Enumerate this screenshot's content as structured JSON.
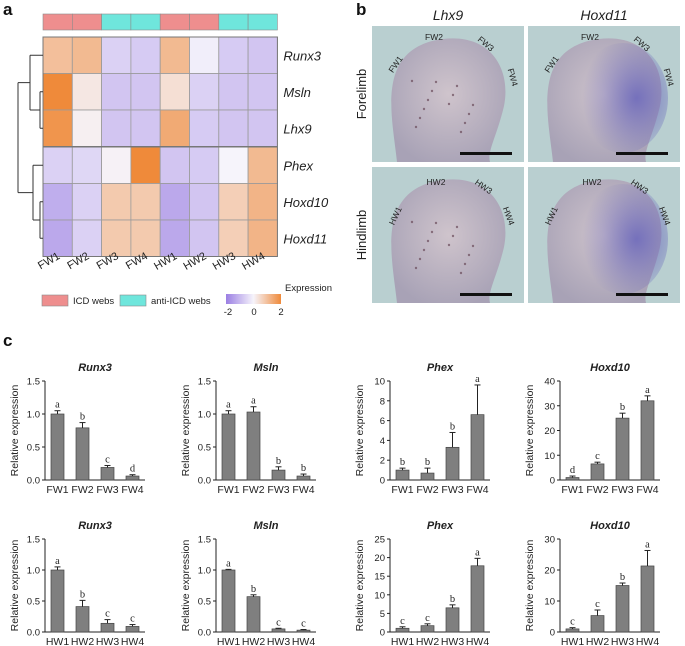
{
  "panels": {
    "a": "a",
    "b": "b",
    "c": "c"
  },
  "colors": {
    "icd": "#ee8e8e",
    "anti_icd": "#6fe6dc",
    "low": "#9b7fe3",
    "mid": "#f6f4fb",
    "high": "#ef8a3a",
    "bar": "#7f7f7f",
    "photo_bg": "#b9cfd0",
    "tissue": "#c9bdc8",
    "stain": "#5f5cba"
  },
  "heatmap": {
    "columns": [
      "FW1",
      "FW2",
      "FW3",
      "FW4",
      "HW1",
      "HW2",
      "HW3",
      "HW4"
    ],
    "column_groups": [
      "ICD",
      "ICD",
      "anti-ICD",
      "anti-ICD",
      "ICD",
      "ICD",
      "anti-ICD",
      "anti-ICD"
    ],
    "rows": [
      {
        "gene": "Runx3",
        "values": [
          1.0,
          1.1,
          -0.6,
          -0.7,
          1.1,
          -0.1,
          -0.7,
          -0.8
        ]
      },
      {
        "gene": "Msln",
        "values": [
          2.0,
          0.25,
          -0.8,
          -0.8,
          0.4,
          -0.6,
          -0.8,
          -0.8
        ]
      },
      {
        "gene": "Lhx9",
        "values": [
          1.8,
          0.1,
          -0.8,
          -0.8,
          1.4,
          -0.7,
          -0.8,
          -0.8
        ]
      },
      {
        "gene": "Phex",
        "values": [
          -0.6,
          -0.5,
          0.05,
          2.0,
          -0.8,
          -0.7,
          0.0,
          1.1
        ]
      },
      {
        "gene": "Hoxd10",
        "values": [
          -1.2,
          -0.6,
          0.8,
          0.8,
          -1.3,
          -0.8,
          0.7,
          1.2
        ]
      },
      {
        "gene": "Hoxd11",
        "values": [
          -1.3,
          -0.6,
          0.8,
          0.8,
          -1.3,
          -0.8,
          0.7,
          1.2
        ]
      }
    ],
    "legend": {
      "icd": "ICD webs",
      "anti_icd": "anti-ICD webs",
      "expression_label": "Expression",
      "scale_ticks": [
        "-2",
        "0",
        "2"
      ]
    }
  },
  "photos": {
    "columns": [
      "Lhx9",
      "Hoxd11"
    ],
    "rows": [
      "Forelimb",
      "Hindlimb"
    ],
    "forelimb_webs": [
      "FW1",
      "FW2",
      "FW3",
      "FW4"
    ],
    "hindlimb_webs": [
      "HW1",
      "HW2",
      "HW3",
      "HW4"
    ]
  },
  "chart_data": [
    {
      "type": "bar",
      "title": "Runx3",
      "ylabel": "Relative  expression",
      "categories": [
        "FW1",
        "FW2",
        "FW3",
        "FW4"
      ],
      "values": [
        1.0,
        0.79,
        0.19,
        0.06
      ],
      "errors": [
        0.05,
        0.08,
        0.03,
        0.02
      ],
      "letters": [
        "a",
        "b",
        "c",
        "d"
      ],
      "ylim": [
        0,
        1.5
      ],
      "yticks": [
        "0.0",
        "0.5",
        "1.0",
        "1.5"
      ]
    },
    {
      "type": "bar",
      "title": "Msln",
      "ylabel": "Relative expression",
      "categories": [
        "FW1",
        "FW2",
        "FW3",
        "FW4"
      ],
      "values": [
        1.0,
        1.03,
        0.15,
        0.06
      ],
      "errors": [
        0.05,
        0.08,
        0.05,
        0.03
      ],
      "letters": [
        "a",
        "a",
        "b",
        "b"
      ],
      "ylim": [
        0,
        1.5
      ],
      "yticks": [
        "0.0",
        "0.5",
        "1.0",
        "1.5"
      ]
    },
    {
      "type": "bar",
      "title": "Phex",
      "ylabel": "Relative expression",
      "categories": [
        "FW1",
        "FW2",
        "FW3",
        "FW4"
      ],
      "values": [
        1.0,
        0.7,
        3.3,
        6.6
      ],
      "errors": [
        0.2,
        0.5,
        1.5,
        3.0
      ],
      "letters": [
        "b",
        "b",
        "b",
        "a"
      ],
      "ylim": [
        0,
        10
      ],
      "yticks": [
        "0",
        "2",
        "4",
        "6",
        "8",
        "10"
      ]
    },
    {
      "type": "bar",
      "title": "Hoxd10",
      "ylabel": "Relative expression",
      "categories": [
        "FW1",
        "FW2",
        "FW3",
        "FW4"
      ],
      "values": [
        1.0,
        6.5,
        25.0,
        32.0
      ],
      "errors": [
        0.6,
        0.7,
        2.0,
        2.0
      ],
      "letters": [
        "d",
        "c",
        "b",
        "a"
      ],
      "ylim": [
        0,
        40
      ],
      "yticks": [
        "0",
        "10",
        "20",
        "30",
        "40"
      ]
    },
    {
      "type": "bar",
      "title": "Runx3",
      "ylabel": "Relative  expression",
      "categories": [
        "HW1",
        "HW2",
        "HW3",
        "HW4"
      ],
      "values": [
        1.0,
        0.41,
        0.14,
        0.09
      ],
      "errors": [
        0.05,
        0.1,
        0.06,
        0.03
      ],
      "letters": [
        "a",
        "b",
        "c",
        "c"
      ],
      "ylim": [
        0,
        1.5
      ],
      "yticks": [
        "0.0",
        "0.5",
        "1.0",
        "1.5"
      ]
    },
    {
      "type": "bar",
      "title": "Msln",
      "ylabel": "Relative expression",
      "categories": [
        "HW1",
        "HW2",
        "HW3",
        "HW4"
      ],
      "values": [
        1.0,
        0.57,
        0.05,
        0.03
      ],
      "errors": [
        0.01,
        0.03,
        0.01,
        0.01
      ],
      "letters": [
        "a",
        "b",
        "c",
        "c"
      ],
      "ylim": [
        0,
        1.5
      ],
      "yticks": [
        "0.0",
        "0.5",
        "1.0",
        "1.5"
      ]
    },
    {
      "type": "bar",
      "title": "Phex",
      "ylabel": "Relative expression",
      "categories": [
        "HW1",
        "HW2",
        "HW3",
        "HW4"
      ],
      "values": [
        1.0,
        1.7,
        6.5,
        17.8
      ],
      "errors": [
        0.4,
        0.5,
        0.8,
        2.0
      ],
      "letters": [
        "c",
        "c",
        "b",
        "a"
      ],
      "ylim": [
        0,
        25
      ],
      "yticks": [
        "0",
        "5",
        "10",
        "15",
        "20",
        "25"
      ]
    },
    {
      "type": "bar",
      "title": "Hoxd10",
      "ylabel": "Relative expression",
      "categories": [
        "HW1",
        "HW2",
        "HW3",
        "HW4"
      ],
      "values": [
        1.0,
        5.3,
        15.0,
        21.3
      ],
      "errors": [
        0.4,
        1.8,
        0.8,
        5.0
      ],
      "letters": [
        "c",
        "c",
        "b",
        "a"
      ],
      "ylim": [
        0,
        30
      ],
      "yticks": [
        "0",
        "10",
        "20",
        "30"
      ]
    }
  ]
}
